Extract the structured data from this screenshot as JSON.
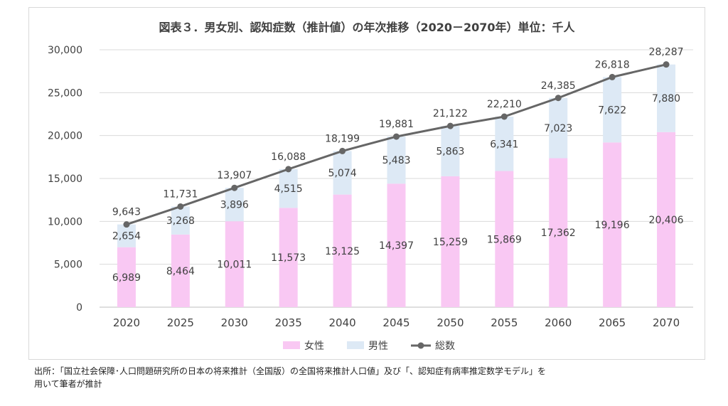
{
  "title": "図表３．男女別、認知症数（推計値）の年次推移（2020－2070年）単位：千人",
  "source_lines": [
    "出所：「国立社会保障･人口問題研究所の日本の将来推計（全国版）の全国将来推計人口値」及び「、認知症有病率推定数学モデル」を",
    "用いて筆者が推計"
  ],
  "chart_data": {
    "type": "bar",
    "stacked": true,
    "title": "図表３．男女別、認知症数（推計値）の年次推移（2020－2070年）単位：千人",
    "categories": [
      "2020",
      "2025",
      "2030",
      "2035",
      "2040",
      "2045",
      "2050",
      "2055",
      "2060",
      "2065",
      "2070"
    ],
    "ylim": [
      0,
      30000
    ],
    "yticks": [
      "0",
      "5,000",
      "10,000",
      "15,000",
      "20,000",
      "25,000",
      "30,000"
    ],
    "ytick_values": [
      0,
      5000,
      10000,
      15000,
      20000,
      25000,
      30000
    ],
    "grid": true,
    "legend_position": "bottom",
    "series": [
      {
        "name": "女性",
        "kind": "bar",
        "color": "#f9c8f3",
        "values": [
          6989,
          8464,
          10011,
          11573,
          13125,
          14397,
          15259,
          15869,
          17362,
          19196,
          20406
        ],
        "labels": [
          "6,989",
          "8,464",
          "10,011",
          "11,573",
          "13,125",
          "14,397",
          "15,259",
          "15,869",
          "17,362",
          "19,196",
          "20,406"
        ]
      },
      {
        "name": "男性",
        "kind": "bar",
        "color": "#dde9f5",
        "values": [
          2654,
          3268,
          3896,
          4515,
          5074,
          5483,
          5863,
          6341,
          7023,
          7622,
          7880
        ],
        "labels": [
          "2,654",
          "3,268",
          "3,896",
          "4,515",
          "5,074",
          "5,483",
          "5,863",
          "6,341",
          "7,023",
          "7,622",
          "7,880"
        ]
      },
      {
        "name": "総数",
        "kind": "line",
        "color": "#666666",
        "values": [
          9643,
          11731,
          13907,
          16088,
          18199,
          19881,
          21122,
          22210,
          24385,
          26818,
          28287
        ],
        "labels": [
          "9,643",
          "11,731",
          "13,907",
          "16,088",
          "18,199",
          "19,881",
          "21,122",
          "22,210",
          "24,385",
          "26,818",
          "28,287"
        ]
      }
    ]
  }
}
